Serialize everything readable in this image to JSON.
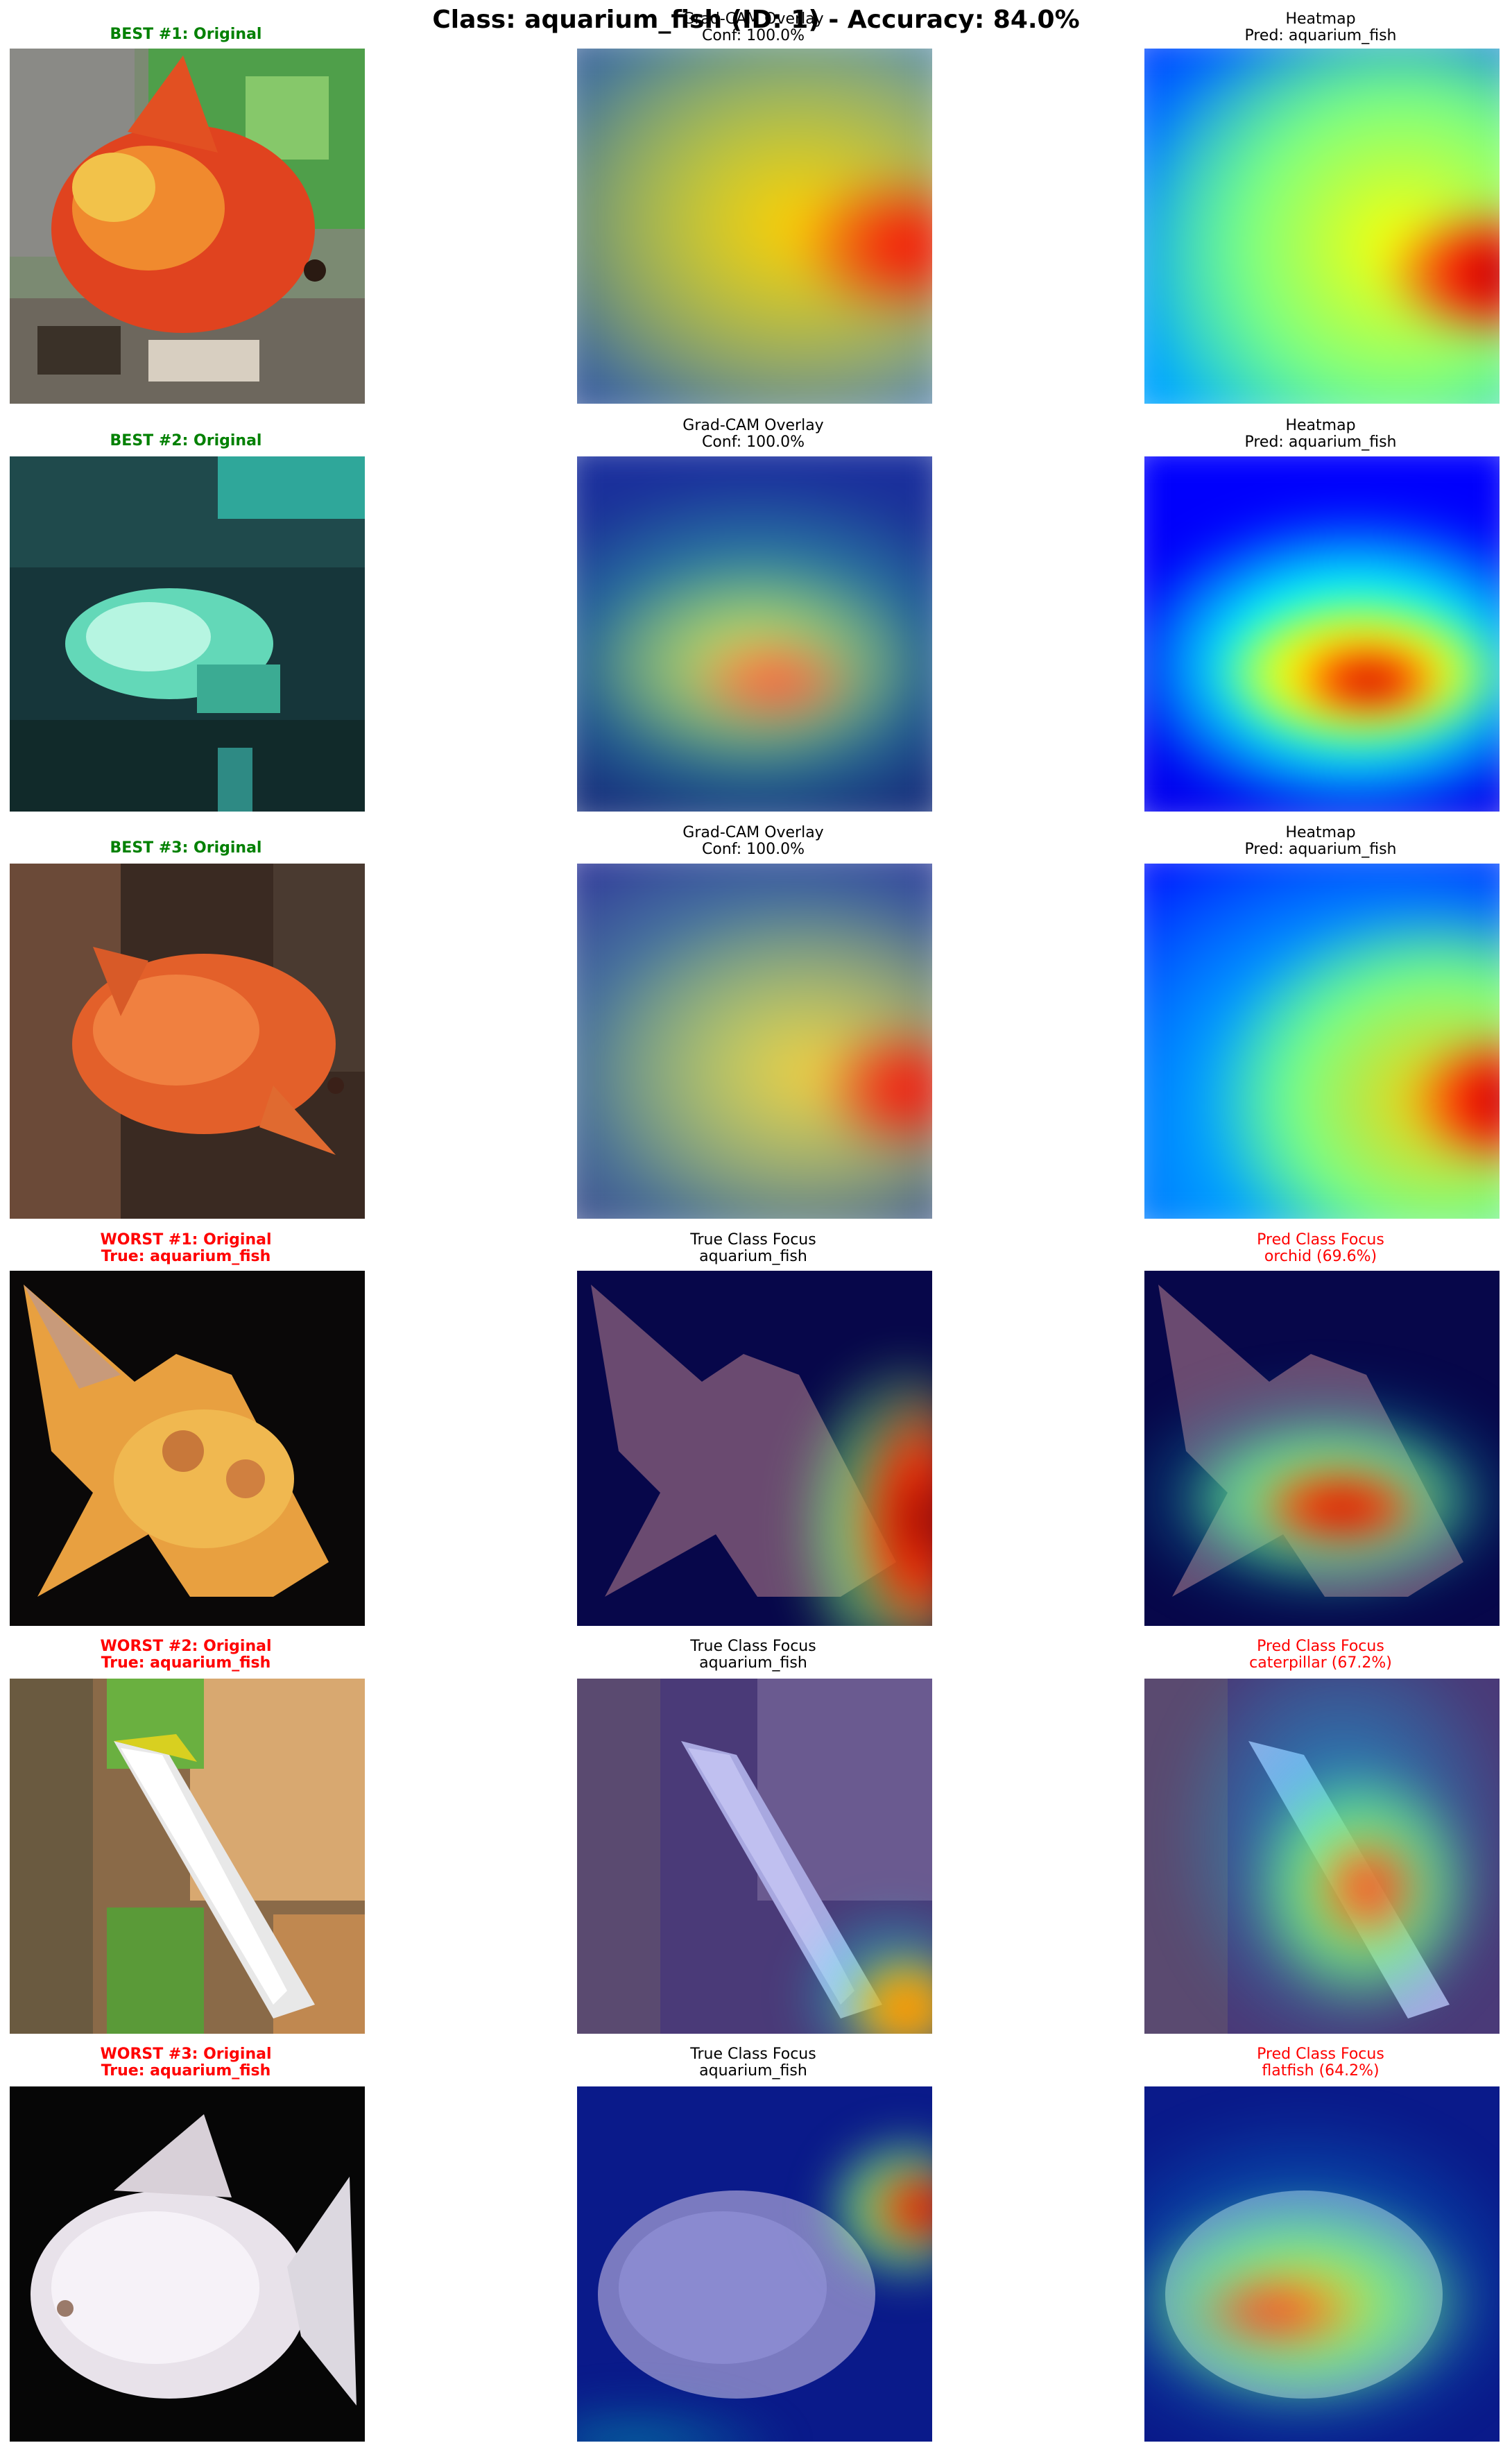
{
  "figure_title": "Class: aquarium_fish (ID: 1) - Accuracy: 84.0%",
  "rows": [
    {
      "original_title": [
        "BEST #1: Original"
      ],
      "original_color": "#008000",
      "middle_title": [
        "Grad-CAM Overlay",
        "Conf: 100.0%"
      ],
      "right_title": [
        "Heatmap",
        "Pred: aquarium_fish"
      ],
      "right_color": "#000000"
    },
    {
      "original_title": [
        "BEST #2: Original"
      ],
      "original_color": "#008000",
      "middle_title": [
        "Grad-CAM Overlay",
        "Conf: 100.0%"
      ],
      "right_title": [
        "Heatmap",
        "Pred: aquarium_fish"
      ],
      "right_color": "#000000"
    },
    {
      "original_title": [
        "BEST #3: Original"
      ],
      "original_color": "#008000",
      "middle_title": [
        "Grad-CAM Overlay",
        "Conf: 100.0%"
      ],
      "right_title": [
        "Heatmap",
        "Pred: aquarium_fish"
      ],
      "right_color": "#000000"
    },
    {
      "original_title": [
        "WORST #1: Original",
        "True: aquarium_fish"
      ],
      "original_color": "#ff0000",
      "middle_title": [
        "True Class Focus",
        "aquarium_fish"
      ],
      "right_title": [
        "Pred Class Focus",
        "orchid (69.6%)"
      ],
      "right_color": "#ff0000"
    },
    {
      "original_title": [
        "WORST #2: Original",
        "True: aquarium_fish"
      ],
      "original_color": "#ff0000",
      "middle_title": [
        "True Class Focus",
        "aquarium_fish"
      ],
      "right_title": [
        "Pred Class Focus",
        "caterpillar (67.2%)"
      ],
      "right_color": "#ff0000"
    },
    {
      "original_title": [
        "WORST #3: Original",
        "True: aquarium_fish"
      ],
      "original_color": "#ff0000",
      "middle_title": [
        "True Class Focus",
        "aquarium_fish"
      ],
      "right_title": [
        "Pred Class Focus",
        "flatfish (64.2%)"
      ],
      "right_color": "#ff0000"
    }
  ],
  "colormap": [
    "#00007f",
    "#0000ff",
    "#007fff",
    "#00ffff",
    "#7fff7f",
    "#ffff00",
    "#ff7f00",
    "#ff0000",
    "#7f0000"
  ]
}
